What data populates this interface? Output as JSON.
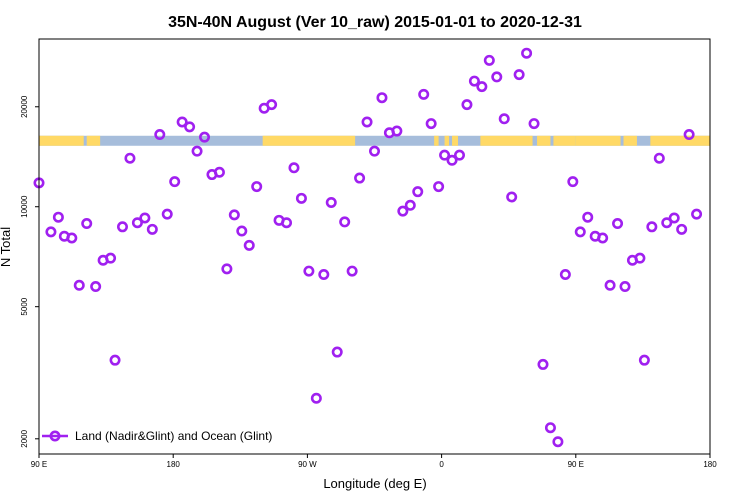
{
  "chart_data": {
    "type": "scatter",
    "title": "35N-40N August (Ver 10_raw)   2015-01-01 to 2020-12-31",
    "xlabel": "Longitude (deg E)",
    "ylabel": "N Total",
    "x_axis": {
      "range_deg_east": [
        90,
        450
      ],
      "ticks": [
        {
          "value": 90,
          "label": "90 E"
        },
        {
          "value": 180,
          "label": "180"
        },
        {
          "value": 270,
          "label": "90 W"
        },
        {
          "value": 360,
          "label": "0"
        },
        {
          "value": 450,
          "label": "90 E"
        },
        {
          "value": 540,
          "label": "180"
        }
      ],
      "range": [
        90,
        540
      ]
    },
    "y_axis": {
      "scale": "log",
      "range": [
        1800,
        32000
      ],
      "ticks": [
        {
          "value": 2000,
          "label": "2000"
        },
        {
          "value": 5000,
          "label": "5000"
        },
        {
          "value": 10000,
          "label": "10000"
        },
        {
          "value": 20000,
          "label": "20000"
        }
      ]
    },
    "legend": {
      "position": "bottom-left",
      "entries": [
        "Land (Nadir&Glint) and Ocean (Glint)"
      ]
    },
    "grid": false,
    "series": [
      {
        "name": "Land (Nadir&Glint) and Ocean (Glint)",
        "color": "#a020f0",
        "points": [
          [
            90,
            11800
          ],
          [
            98,
            8400
          ],
          [
            103,
            9300
          ],
          [
            107,
            8150
          ],
          [
            112,
            8050
          ],
          [
            117,
            5800
          ],
          [
            122,
            8900
          ],
          [
            128,
            5750
          ],
          [
            133,
            6900
          ],
          [
            138,
            7000
          ],
          [
            141,
            3450
          ],
          [
            146,
            8700
          ],
          [
            151,
            14000
          ],
          [
            156,
            8950
          ],
          [
            161,
            9250
          ],
          [
            166,
            8550
          ],
          [
            171,
            16500
          ],
          [
            176,
            9500
          ],
          [
            181,
            11900
          ],
          [
            186,
            18000
          ],
          [
            191,
            17400
          ],
          [
            196,
            14700
          ],
          [
            201,
            16200
          ],
          [
            206,
            12500
          ],
          [
            211,
            12700
          ],
          [
            216,
            6500
          ],
          [
            221,
            9450
          ],
          [
            226,
            8450
          ],
          [
            231,
            7650
          ],
          [
            236,
            11500
          ],
          [
            241,
            19800
          ],
          [
            246,
            20300
          ],
          [
            251,
            9100
          ],
          [
            256,
            8950
          ],
          [
            261,
            13100
          ],
          [
            266,
            10600
          ],
          [
            271,
            6400
          ],
          [
            276,
            2650
          ],
          [
            281,
            6250
          ],
          [
            286,
            10300
          ],
          [
            290,
            3650
          ],
          [
            295,
            9000
          ],
          [
            300,
            6400
          ],
          [
            305,
            12200
          ],
          [
            310,
            18000
          ],
          [
            315,
            14700
          ],
          [
            320,
            21300
          ],
          [
            325,
            16700
          ],
          [
            330,
            16900
          ],
          [
            334,
            9700
          ],
          [
            339,
            10100
          ],
          [
            344,
            11100
          ],
          [
            348,
            21800
          ],
          [
            353,
            17800
          ],
          [
            358,
            11500
          ],
          [
            362,
            14300
          ],
          [
            367,
            13800
          ],
          [
            372,
            14300
          ],
          [
            377,
            20300
          ],
          [
            382,
            23900
          ],
          [
            387,
            23000
          ],
          [
            392,
            27600
          ],
          [
            397,
            24600
          ],
          [
            402,
            18400
          ],
          [
            407,
            10700
          ],
          [
            412,
            25000
          ],
          [
            417,
            29000
          ],
          [
            422,
            17800
          ],
          [
            428,
            3350
          ],
          [
            433,
            2160
          ],
          [
            438,
            1960
          ],
          [
            443,
            6250
          ],
          [
            448,
            11900
          ],
          [
            453,
            8400
          ],
          [
            458,
            9300
          ],
          [
            463,
            8150
          ],
          [
            468,
            8050
          ],
          [
            473,
            5800
          ],
          [
            478,
            8900
          ],
          [
            483,
            5750
          ],
          [
            488,
            6900
          ],
          [
            493,
            7000
          ],
          [
            496,
            3450
          ],
          [
            501,
            8700
          ],
          [
            506,
            14000
          ],
          [
            511,
            8950
          ],
          [
            516,
            9250
          ],
          [
            521,
            8550
          ],
          [
            526,
            16500
          ],
          [
            531,
            9500
          ]
        ]
      }
    ],
    "surface_band": {
      "value": 15800,
      "land_color": "#ffd966",
      "ocean_color": "#a6bddb",
      "land_segments": [
        [
          90,
          120
        ],
        [
          122,
          131
        ],
        [
          240,
          302
        ],
        [
          355,
          358
        ],
        [
          362,
          365
        ],
        [
          367,
          371
        ],
        [
          386,
          421
        ],
        [
          424,
          433
        ],
        [
          435,
          450
        ],
        [
          450,
          480
        ],
        [
          482,
          491
        ],
        [
          500,
          540
        ]
      ]
    }
  }
}
